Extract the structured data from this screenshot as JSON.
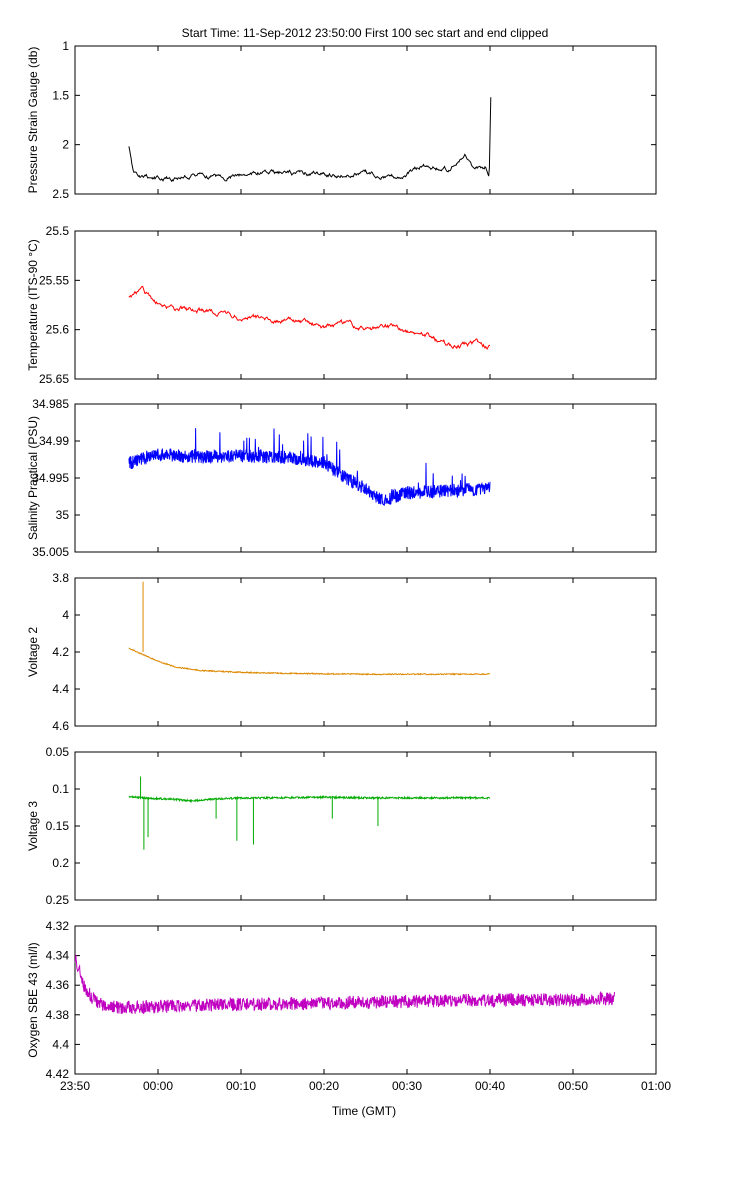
{
  "figure": {
    "title": "Start Time: 11-Sep-2012 23:50:00   First 100 sec start and end clipped",
    "xlabel": "Time (GMT)",
    "x_tick_labels": [
      "23:50",
      "00:00",
      "00:10",
      "00:20",
      "00:30",
      "00:40",
      "00:50",
      "01:00"
    ]
  },
  "chart_data": [
    {
      "type": "line",
      "ylabel": "Pressure Strain Gauge (db)",
      "color": "#000000",
      "ylim": [
        1,
        2.5
      ],
      "y_inverted": true,
      "y_ticks": [
        1,
        1.5,
        2,
        2.5
      ],
      "y_tick_labels": [
        "1",
        "1.5",
        "2",
        "2.5"
      ],
      "series": [
        {
          "x_minutes": [
            6.5,
            7,
            8,
            10,
            12,
            15,
            18,
            20,
            22,
            25,
            28,
            30,
            32,
            35,
            38,
            40,
            42,
            45,
            47,
            48,
            49.4,
            49.9,
            50.1
          ],
          "y": [
            2.02,
            2.3,
            2.33,
            2.35,
            2.33,
            2.3,
            2.32,
            2.3,
            2.28,
            2.3,
            2.29,
            2.3,
            2.32,
            2.28,
            2.32,
            2.3,
            2.2,
            2.25,
            2.12,
            2.28,
            2.23,
            2.33,
            1.5
          ]
        }
      ]
    },
    {
      "type": "line",
      "ylabel": "Temperature (ITS-90 °C)",
      "color": "#ff0000",
      "ylim": [
        25.5,
        25.65
      ],
      "y_inverted": true,
      "y_ticks": [
        25.5,
        25.55,
        25.6,
        25.65
      ],
      "y_tick_labels": [
        "25.5",
        "25.55",
        "25.6",
        "25.65"
      ],
      "series": [
        {
          "x_minutes": [
            6.5,
            8,
            10,
            12,
            14,
            16,
            18,
            20,
            22,
            25,
            28,
            30,
            32,
            35,
            38,
            40,
            42,
            44,
            46,
            48,
            50
          ],
          "y": [
            25.568,
            25.56,
            25.573,
            25.578,
            25.58,
            25.582,
            25.585,
            25.587,
            25.588,
            25.59,
            25.594,
            25.597,
            25.595,
            25.6,
            25.598,
            25.603,
            25.605,
            25.612,
            25.618,
            25.614,
            25.617
          ]
        }
      ]
    },
    {
      "type": "line",
      "ylabel": "Salinity Practical (PSU)",
      "color": "#0000ff",
      "ylim": [
        34.985,
        35.005
      ],
      "y_inverted": true,
      "y_ticks": [
        34.985,
        34.99,
        34.995,
        35,
        35.005
      ],
      "y_tick_labels": [
        "34.985",
        "34.99",
        "34.995",
        "35",
        "35.005"
      ],
      "series": [
        {
          "x_minutes": [
            6.5,
            10,
            15,
            20,
            25,
            28,
            30,
            32,
            35,
            37,
            40,
            44,
            48,
            50
          ],
          "y": [
            34.993,
            34.9918,
            34.9922,
            34.992,
            34.9922,
            34.9925,
            34.993,
            34.9945,
            34.9965,
            34.998,
            34.997,
            34.9968,
            34.9965,
            34.9964
          ]
        }
      ]
    },
    {
      "type": "line",
      "ylabel": "Voltage 2",
      "color": "#dd8800",
      "ylim": [
        3.8,
        4.6
      ],
      "y_inverted": true,
      "y_ticks": [
        3.8,
        4,
        4.2,
        4.4,
        4.6
      ],
      "y_tick_labels": [
        "3.8",
        "4",
        "4.2",
        "4.4",
        "4.6"
      ],
      "series": [
        {
          "x_minutes": [
            6.5,
            7,
            8,
            9,
            10,
            12,
            15,
            20,
            25,
            30,
            35,
            40,
            45,
            50
          ],
          "y": [
            4.18,
            4.19,
            4.21,
            4.23,
            4.25,
            4.28,
            4.3,
            4.31,
            4.315,
            4.318,
            4.32,
            4.32,
            4.32,
            4.32
          ]
        }
      ]
    },
    {
      "type": "line",
      "ylabel": "Voltage 3",
      "color": "#00aa00",
      "ylim": [
        0.05,
        0.25
      ],
      "y_inverted": true,
      "y_ticks": [
        0.05,
        0.1,
        0.15,
        0.2,
        0.25
      ],
      "y_tick_labels": [
        "0.05",
        "0.1",
        "0.15",
        "0.2",
        "0.25"
      ],
      "series": [
        {
          "x_minutes": [
            6.5,
            8,
            10,
            12,
            14,
            16,
            18,
            20,
            25,
            30,
            35,
            40,
            45,
            50
          ],
          "y": [
            0.11,
            0.112,
            0.113,
            0.114,
            0.116,
            0.114,
            0.113,
            0.112,
            0.112,
            0.111,
            0.112,
            0.112,
            0.112,
            0.112
          ]
        }
      ]
    },
    {
      "type": "line",
      "ylabel": "Oxygen SBE 43 (ml/l)",
      "color": "#c000c0",
      "ylim": [
        4.32,
        4.42
      ],
      "y_inverted": true,
      "y_ticks": [
        4.32,
        4.34,
        4.36,
        4.38,
        4.4,
        4.42
      ],
      "y_tick_labels": [
        "4.32",
        "4.34",
        "4.36",
        "4.38",
        "4.4",
        "4.42"
      ],
      "series": [
        {
          "x_minutes": [
            0,
            0.5,
            1,
            2,
            3,
            5,
            8,
            12,
            20,
            30,
            40,
            50,
            60,
            65
          ],
          "y": [
            4.342,
            4.35,
            4.36,
            4.368,
            4.373,
            4.375,
            4.375,
            4.374,
            4.373,
            4.372,
            4.371,
            4.37,
            4.37,
            4.369
          ]
        }
      ]
    }
  ]
}
